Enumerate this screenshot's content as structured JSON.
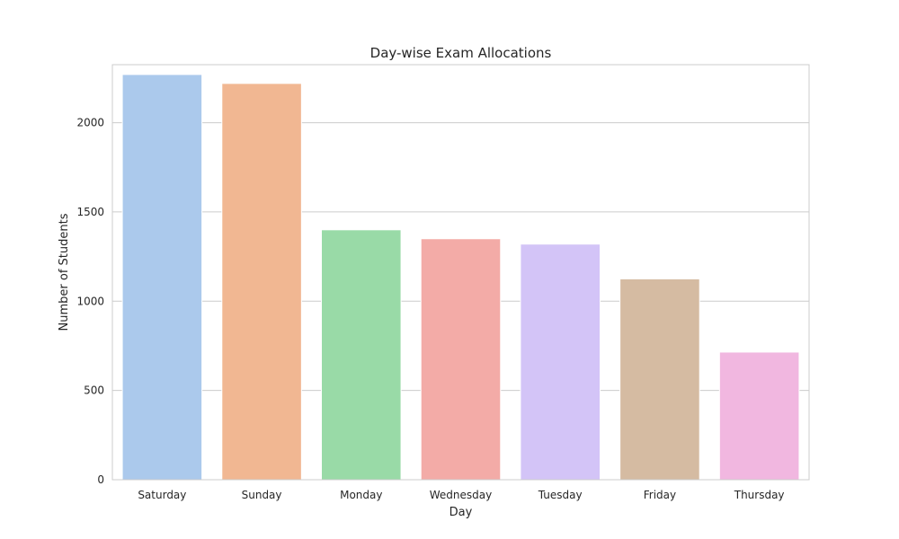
{
  "chart_data": {
    "type": "bar",
    "title": "Day-wise Exam Allocations",
    "xlabel": "Day",
    "ylabel": "Number of Students",
    "categories": [
      "Saturday",
      "Sunday",
      "Monday",
      "Wednesday",
      "Tuesday",
      "Friday",
      "Thursday"
    ],
    "values": [
      2270,
      2220,
      1400,
      1350,
      1320,
      1125,
      715
    ],
    "colors": [
      "#abc9ec",
      "#f1b792",
      "#99daa7",
      "#f3aba7",
      "#d3c4f7",
      "#d5bba2",
      "#f1b7e0"
    ],
    "ylim": [
      0,
      2325
    ],
    "yticks": [
      0,
      500,
      1000,
      1500,
      2000
    ],
    "grid": true,
    "grid_axis": "y",
    "legend": "none"
  }
}
